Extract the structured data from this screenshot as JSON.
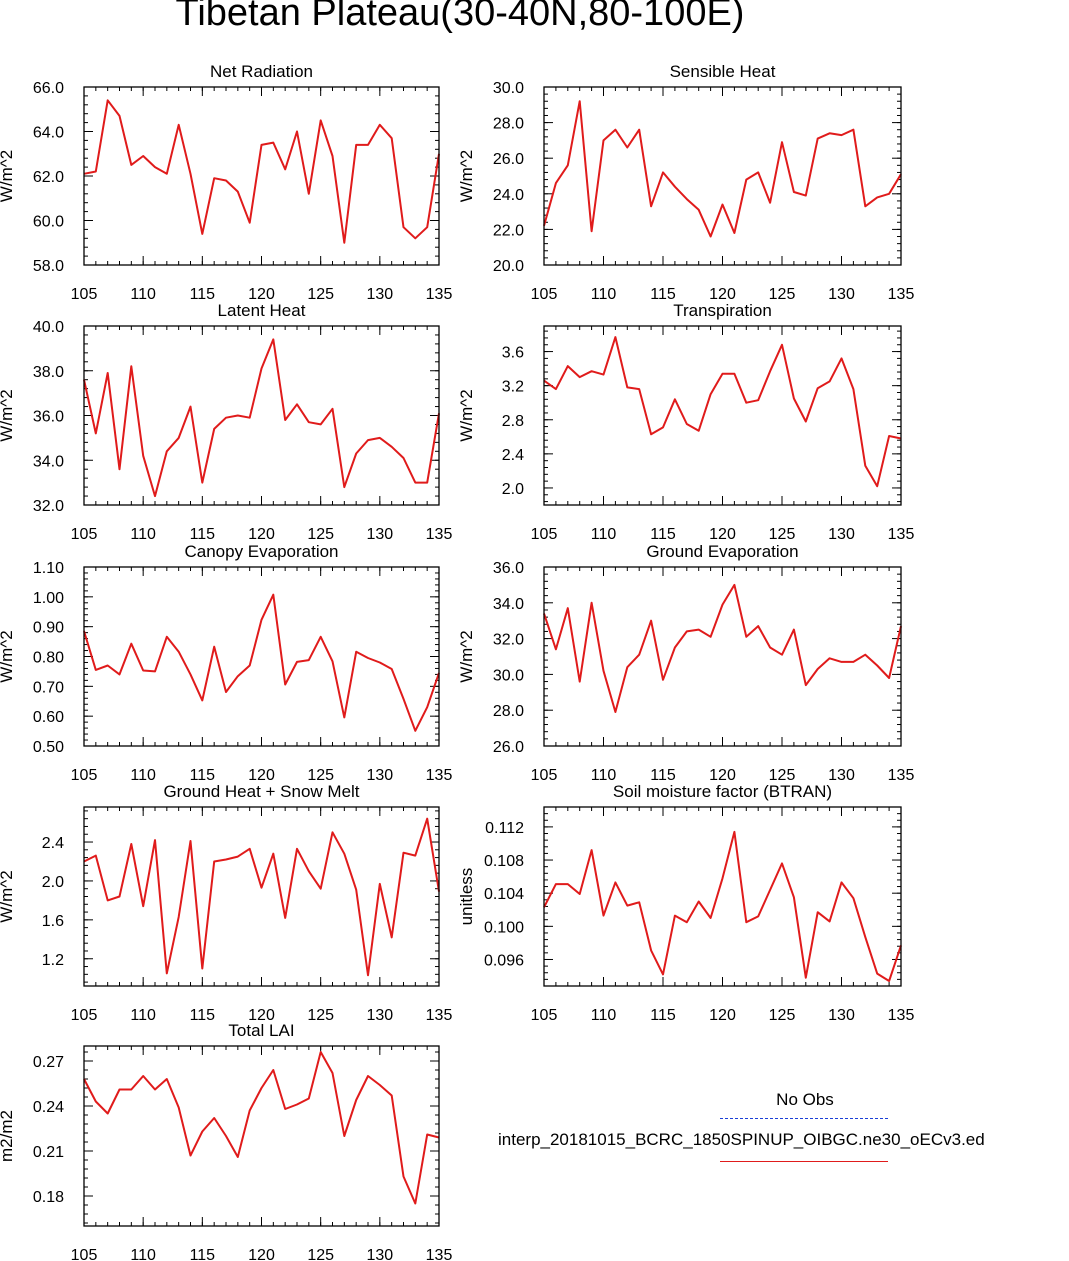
{
  "title": "Tibetan Plateau(30-40N,80-100E)",
  "legend": {
    "obs_label": "No Obs",
    "case_label": "interp_20181015_BCRC_1850SPINUP_OIBGC.ne30_oECv3.ed",
    "obs_color": "#1a3fd6",
    "case_color": "#e01b1b"
  },
  "chart_data": [
    {
      "type": "line",
      "title": "Net Radiation",
      "ylabel": "W/m^2",
      "xlim": [
        105,
        135
      ],
      "ylim": [
        58,
        66
      ],
      "xticks": [
        "105",
        "110",
        "115",
        "120",
        "125",
        "130",
        "135"
      ],
      "yticks": [
        "58.0",
        "60.0",
        "62.0",
        "64.0",
        "66.0"
      ],
      "x": [
        105,
        106,
        107,
        108,
        109,
        110,
        111,
        112,
        113,
        114,
        115,
        116,
        117,
        118,
        119,
        120,
        121,
        122,
        123,
        124,
        125,
        126,
        127,
        128,
        129,
        130,
        131,
        132,
        133,
        134,
        135
      ],
      "values": [
        62.1,
        62.2,
        65.4,
        64.7,
        62.5,
        62.9,
        62.4,
        62.1,
        64.3,
        62.1,
        59.4,
        61.9,
        61.8,
        61.3,
        59.9,
        63.4,
        63.5,
        62.3,
        64.0,
        61.2,
        64.5,
        62.9,
        59.0,
        63.4,
        63.4,
        64.3,
        63.7,
        59.7,
        59.2,
        59.7,
        63.0
      ]
    },
    {
      "type": "line",
      "title": "Sensible Heat",
      "ylabel": "W/m^2",
      "xlim": [
        105,
        135
      ],
      "ylim": [
        20,
        30
      ],
      "xticks": [
        "105",
        "110",
        "115",
        "120",
        "125",
        "130",
        "135"
      ],
      "yticks": [
        "20.0",
        "22.0",
        "24.0",
        "26.0",
        "28.0",
        "30.0"
      ],
      "x": [
        105,
        106,
        107,
        108,
        109,
        110,
        111,
        112,
        113,
        114,
        115,
        116,
        117,
        118,
        119,
        120,
        121,
        122,
        123,
        124,
        125,
        126,
        127,
        128,
        129,
        130,
        131,
        132,
        133,
        134,
        135
      ],
      "values": [
        22.2,
        24.6,
        25.6,
        29.2,
        21.9,
        27.0,
        27.6,
        26.6,
        27.6,
        23.3,
        25.2,
        24.4,
        23.7,
        23.1,
        21.6,
        23.4,
        21.8,
        24.8,
        25.2,
        23.5,
        26.9,
        24.1,
        23.9,
        27.1,
        27.4,
        27.3,
        27.6,
        23.3,
        23.8,
        24.0,
        25.1
      ]
    },
    {
      "type": "line",
      "title": "Latent Heat",
      "ylabel": "W/m^2",
      "xlim": [
        105,
        135
      ],
      "ylim": [
        32,
        40
      ],
      "xticks": [
        "105",
        "110",
        "115",
        "120",
        "125",
        "130",
        "135"
      ],
      "yticks": [
        "32.0",
        "34.0",
        "36.0",
        "38.0",
        "40.0"
      ],
      "x": [
        105,
        106,
        107,
        108,
        109,
        110,
        111,
        112,
        113,
        114,
        115,
        116,
        117,
        118,
        119,
        120,
        121,
        122,
        123,
        124,
        125,
        126,
        127,
        128,
        129,
        130,
        131,
        132,
        133,
        134,
        135
      ],
      "values": [
        37.6,
        35.2,
        37.9,
        33.6,
        38.2,
        34.2,
        32.4,
        34.4,
        35.0,
        36.4,
        33.0,
        35.4,
        35.9,
        36.0,
        35.9,
        38.1,
        39.4,
        35.8,
        36.5,
        35.7,
        35.6,
        36.3,
        32.8,
        34.3,
        34.9,
        35.0,
        34.6,
        34.1,
        33.0,
        33.0,
        36.1
      ]
    },
    {
      "type": "line",
      "title": "Transpiration",
      "ylabel": "W/m^2",
      "xlim": [
        105,
        135
      ],
      "ylim": [
        1.8,
        3.9
      ],
      "xticks": [
        "105",
        "110",
        "115",
        "120",
        "125",
        "130",
        "135"
      ],
      "yticks": [
        "2.0",
        "2.4",
        "2.8",
        "3.2",
        "3.6"
      ],
      "x": [
        105,
        106,
        107,
        108,
        109,
        110,
        111,
        112,
        113,
        114,
        115,
        116,
        117,
        118,
        119,
        120,
        121,
        122,
        123,
        124,
        125,
        126,
        127,
        128,
        129,
        130,
        131,
        132,
        133,
        134,
        135
      ],
      "values": [
        3.26,
        3.16,
        3.43,
        3.3,
        3.37,
        3.33,
        3.77,
        3.18,
        3.16,
        2.63,
        2.71,
        3.04,
        2.75,
        2.67,
        3.1,
        3.34,
        3.34,
        3.0,
        3.03,
        3.37,
        3.68,
        3.05,
        2.78,
        3.17,
        3.25,
        3.52,
        3.16,
        2.26,
        2.02,
        2.61,
        2.58
      ]
    },
    {
      "type": "line",
      "title": "Canopy Evaporation",
      "ylabel": "W/m^2",
      "xlim": [
        105,
        135
      ],
      "ylim": [
        0.5,
        1.1
      ],
      "xticks": [
        "105",
        "110",
        "115",
        "120",
        "125",
        "130",
        "135"
      ],
      "yticks": [
        "0.50",
        "0.60",
        "0.70",
        "0.80",
        "0.90",
        "1.00",
        "1.10"
      ],
      "x": [
        105,
        106,
        107,
        108,
        109,
        110,
        111,
        112,
        113,
        114,
        115,
        116,
        117,
        118,
        119,
        120,
        121,
        122,
        123,
        124,
        125,
        126,
        127,
        128,
        129,
        130,
        131,
        132,
        133,
        134,
        135
      ],
      "values": [
        0.885,
        0.755,
        0.77,
        0.74,
        0.843,
        0.753,
        0.75,
        0.866,
        0.816,
        0.74,
        0.653,
        0.833,
        0.681,
        0.734,
        0.77,
        0.923,
        1.007,
        0.706,
        0.782,
        0.788,
        0.866,
        0.784,
        0.596,
        0.816,
        0.795,
        0.78,
        0.758,
        0.658,
        0.551,
        0.63,
        0.745
      ]
    },
    {
      "type": "line",
      "title": "Ground Evaporation",
      "ylabel": "W/m^2",
      "xlim": [
        105,
        135
      ],
      "ylim": [
        26,
        36
      ],
      "xticks": [
        "105",
        "110",
        "115",
        "120",
        "125",
        "130",
        "135"
      ],
      "yticks": [
        "26.0",
        "28.0",
        "30.0",
        "32.0",
        "34.0",
        "36.0"
      ],
      "x": [
        105,
        106,
        107,
        108,
        109,
        110,
        111,
        112,
        113,
        114,
        115,
        116,
        117,
        118,
        119,
        120,
        121,
        122,
        123,
        124,
        125,
        126,
        127,
        128,
        129,
        130,
        131,
        132,
        133,
        134,
        135
      ],
      "values": [
        33.4,
        31.4,
        33.7,
        29.6,
        34.0,
        30.2,
        27.9,
        30.4,
        31.1,
        33.0,
        29.7,
        31.5,
        32.4,
        32.5,
        32.1,
        33.9,
        35.0,
        32.1,
        32.7,
        31.5,
        31.1,
        32.5,
        29.4,
        30.3,
        30.9,
        30.7,
        30.7,
        31.1,
        30.5,
        29.8,
        32.7
      ]
    },
    {
      "type": "line",
      "title": "Ground Heat + Snow Melt",
      "ylabel": "W/m^2",
      "xlim": [
        105,
        135
      ],
      "ylim": [
        0.92,
        2.76
      ],
      "xticks": [
        "105",
        "110",
        "115",
        "120",
        "125",
        "130",
        "135"
      ],
      "yticks": [
        "1.2",
        "1.6",
        "2.0",
        "2.4"
      ],
      "x": [
        105,
        106,
        107,
        108,
        109,
        110,
        111,
        112,
        113,
        114,
        115,
        116,
        117,
        118,
        119,
        120,
        121,
        122,
        123,
        124,
        125,
        126,
        127,
        128,
        129,
        130,
        131,
        132,
        133,
        134,
        135
      ],
      "values": [
        2.2,
        2.26,
        1.8,
        1.84,
        2.38,
        1.74,
        2.42,
        1.05,
        1.63,
        2.41,
        1.1,
        2.2,
        2.22,
        2.25,
        2.33,
        1.93,
        2.28,
        1.62,
        2.33,
        2.1,
        1.92,
        2.5,
        2.28,
        1.91,
        1.03,
        1.97,
        1.42,
        2.29,
        2.26,
        2.64,
        1.89
      ]
    },
    {
      "type": "line",
      "title": "Soil moisture factor (BTRAN)",
      "ylabel": "unitless",
      "xlim": [
        105,
        135
      ],
      "ylim": [
        0.0928,
        0.1144
      ],
      "xticks": [
        "105",
        "110",
        "115",
        "120",
        "125",
        "130",
        "135"
      ],
      "yticks": [
        "0.096",
        "0.100",
        "0.104",
        "0.108",
        "0.112"
      ],
      "x": [
        105,
        106,
        107,
        108,
        109,
        110,
        111,
        112,
        113,
        114,
        115,
        116,
        117,
        118,
        119,
        120,
        121,
        122,
        123,
        124,
        125,
        126,
        127,
        128,
        129,
        130,
        131,
        132,
        133,
        134,
        135
      ],
      "values": [
        0.1023,
        0.1051,
        0.1051,
        0.1039,
        0.1092,
        0.1013,
        0.1053,
        0.1025,
        0.1029,
        0.0971,
        0.0942,
        0.1013,
        0.1005,
        0.103,
        0.101,
        0.1058,
        0.1114,
        0.1005,
        0.1012,
        0.1044,
        0.1076,
        0.1035,
        0.0938,
        0.1017,
        0.1006,
        0.1053,
        0.1034,
        0.0987,
        0.0943,
        0.0934,
        0.0977
      ]
    },
    {
      "type": "line",
      "title": "Total LAI",
      "ylabel": "m2/m2",
      "xlim": [
        105,
        135
      ],
      "ylim": [
        0.16,
        0.28
      ],
      "xticks": [
        "105",
        "110",
        "115",
        "120",
        "125",
        "130",
        "135"
      ],
      "yticks": [
        "0.18",
        "0.21",
        "0.24",
        "0.27"
      ],
      "x": [
        105,
        106,
        107,
        108,
        109,
        110,
        111,
        112,
        113,
        114,
        115,
        116,
        117,
        118,
        119,
        120,
        121,
        122,
        123,
        124,
        125,
        126,
        127,
        128,
        129,
        130,
        131,
        132,
        133,
        134,
        135
      ],
      "values": [
        0.258,
        0.243,
        0.235,
        0.251,
        0.251,
        0.26,
        0.251,
        0.258,
        0.239,
        0.207,
        0.223,
        0.232,
        0.22,
        0.206,
        0.237,
        0.252,
        0.264,
        0.238,
        0.241,
        0.245,
        0.276,
        0.262,
        0.22,
        0.244,
        0.26,
        0.254,
        0.247,
        0.193,
        0.175,
        0.221,
        0.219
      ]
    }
  ]
}
